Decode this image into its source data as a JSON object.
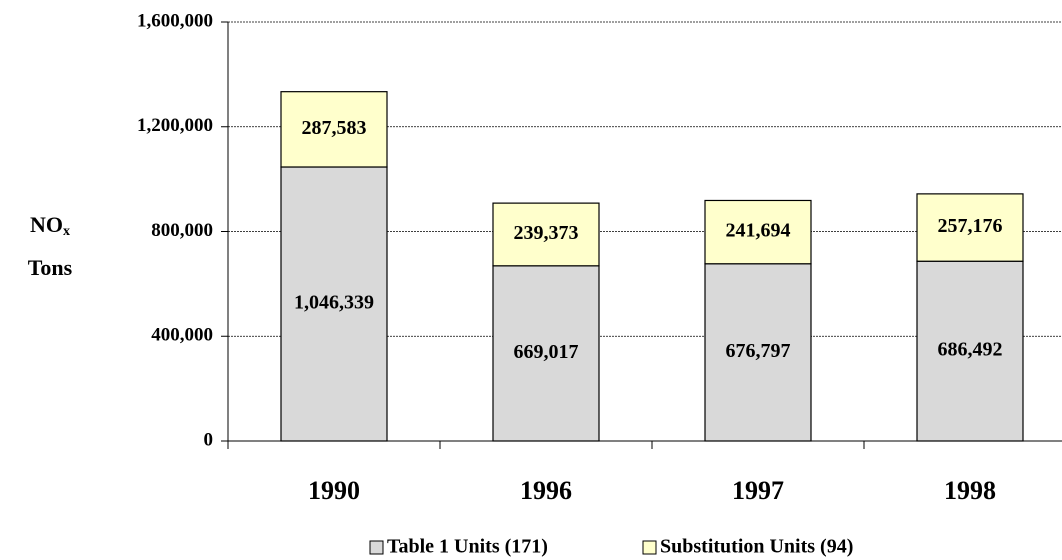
{
  "chart_data": {
    "type": "stacked_bar",
    "y_label": {
      "main": "NO",
      "subscript": "x",
      "unit": "Tons"
    },
    "categories": [
      "1990",
      "1996",
      "1997",
      "1998"
    ],
    "series": [
      {
        "name": "Table 1 Units (171)",
        "color": "#d9d9d9",
        "values": [
          1046339,
          669017,
          676797,
          686492
        ],
        "value_labels": [
          "1,046,339",
          "669,017",
          "676,797",
          "686,492"
        ]
      },
      {
        "name": "Substitution Units (94)",
        "color": "#ffffcc",
        "values": [
          287583,
          239373,
          241694,
          257176
        ],
        "value_labels": [
          "287,583",
          "239,373",
          "241,694",
          "257,176"
        ]
      }
    ],
    "ylim": [
      0,
      1600000
    ],
    "yticks": [
      0,
      {
        "value": 400000,
        "label": "400,000"
      },
      {
        "value": 800000,
        "label": "800,000"
      },
      {
        "value": 1200000,
        "label": "1,200,000"
      },
      {
        "value": 1600000,
        "label": "1,600,000"
      }
    ],
    "grid": true,
    "legend": "bottom"
  }
}
